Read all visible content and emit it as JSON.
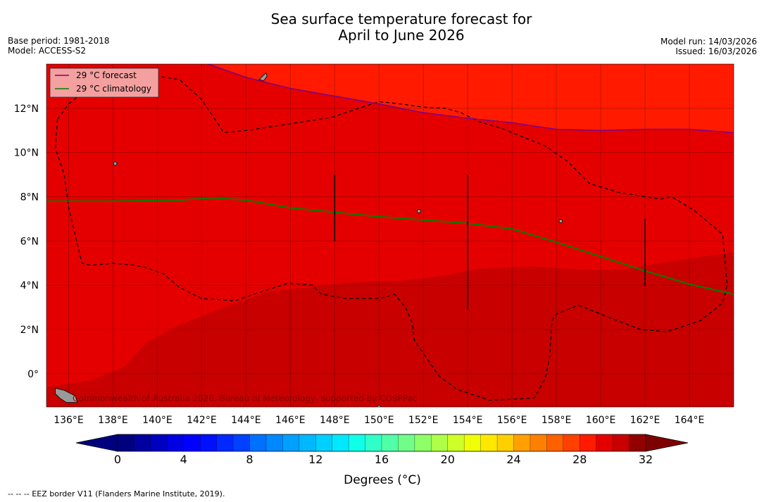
{
  "header": {
    "title_line1": "Sea surface temperature forecast for",
    "title_line2": "April to June 2026",
    "base_period": "Base period: 1981-2018",
    "model": "Model: ACCESS-S2",
    "model_run": "Model run: 14/03/2026",
    "issued": "Issued: 16/03/2026"
  },
  "map": {
    "lon_range": [
      135,
      166
    ],
    "lat_range": [
      -1.5,
      14
    ],
    "lon_ticks": [
      136,
      138,
      140,
      142,
      144,
      146,
      148,
      150,
      152,
      154,
      156,
      158,
      160,
      162,
      164
    ],
    "lon_tick_labels": [
      "136°E",
      "138°E",
      "140°E",
      "142°E",
      "144°E",
      "146°E",
      "148°E",
      "150°E",
      "152°E",
      "154°E",
      "156°E",
      "158°E",
      "160°E",
      "162°E",
      "164°E"
    ],
    "lat_ticks": [
      0,
      2,
      4,
      6,
      8,
      10,
      12
    ],
    "lat_tick_labels": [
      "0°",
      "2°N",
      "4°N",
      "6°N",
      "8°N",
      "10°N",
      "12°N"
    ],
    "ocean_colors": {
      "band_28_29": "#e50000",
      "band_29_30": "#ff1a00",
      "band_27_28": "#c80000",
      "land": "#999999",
      "eez_line": "#000000",
      "forecast_line": "#800080",
      "climatology_line": "#008000",
      "grid": "#000000"
    },
    "warm_region_boundary": [
      [
        135,
        14
      ],
      [
        142.3,
        14
      ],
      [
        144,
        13.4
      ],
      [
        146,
        12.9
      ],
      [
        148,
        12.55
      ],
      [
        150,
        12.2
      ],
      [
        152,
        11.8
      ],
      [
        154,
        11.55
      ],
      [
        156,
        11.35
      ],
      [
        158,
        11.05
      ],
      [
        160,
        11.0
      ],
      [
        162,
        11.05
      ],
      [
        164,
        11.05
      ],
      [
        166,
        10.9
      ],
      [
        166,
        14
      ]
    ],
    "cool_region_boundary": [
      [
        135,
        -1.5
      ],
      [
        135,
        -0.6
      ],
      [
        137,
        -0.3
      ],
      [
        138.5,
        0.3
      ],
      [
        139.5,
        1.4
      ],
      [
        141,
        2.2
      ],
      [
        143,
        3.0
      ],
      [
        145,
        3.7
      ],
      [
        147,
        3.95
      ],
      [
        149,
        4.15
      ],
      [
        151,
        4.2
      ],
      [
        153,
        4.45
      ],
      [
        154.5,
        4.75
      ],
      [
        157,
        4.85
      ],
      [
        159,
        4.7
      ],
      [
        161,
        4.7
      ],
      [
        163,
        5.05
      ],
      [
        165,
        5.35
      ],
      [
        166,
        5.5
      ],
      [
        166,
        -1.5
      ]
    ],
    "forecast_29c_contour": [
      [
        142.3,
        14
      ],
      [
        144,
        13.4
      ],
      [
        146,
        12.9
      ],
      [
        148,
        12.55
      ],
      [
        150,
        12.2
      ],
      [
        152,
        11.8
      ],
      [
        154,
        11.55
      ],
      [
        156,
        11.35
      ],
      [
        158,
        11.05
      ],
      [
        160,
        11.0
      ],
      [
        162,
        11.05
      ],
      [
        164,
        11.05
      ],
      [
        166,
        10.9
      ]
    ],
    "climatology_29c_contour": [
      [
        135,
        7.8
      ],
      [
        138,
        7.8
      ],
      [
        141,
        7.85
      ],
      [
        142.5,
        7.95
      ],
      [
        144,
        7.85
      ],
      [
        146,
        7.5
      ],
      [
        148,
        7.3
      ],
      [
        150,
        7.1
      ],
      [
        152,
        6.95
      ],
      [
        154,
        6.8
      ],
      [
        156,
        6.55
      ],
      [
        158,
        5.95
      ],
      [
        160,
        5.3
      ],
      [
        162,
        4.65
      ],
      [
        164,
        4.05
      ],
      [
        166,
        3.6
      ]
    ],
    "eez_borders": [
      [
        [
          135.5,
          11.5
        ],
        [
          136,
          12.2
        ],
        [
          137,
          13
        ],
        [
          139,
          13.6
        ],
        [
          141,
          13.3
        ],
        [
          142,
          12.4
        ],
        [
          143,
          10.9
        ],
        [
          144,
          11
        ],
        [
          146,
          11.3
        ],
        [
          147.9,
          11.6
        ],
        [
          148.5,
          11.8
        ],
        [
          150,
          12.3
        ],
        [
          151,
          12.2
        ],
        [
          152,
          12.05
        ],
        [
          153,
          12.0
        ],
        [
          153.7,
          11.8
        ],
        [
          154.5,
          11.4
        ],
        [
          155.5,
          11.1
        ],
        [
          156.5,
          10.7
        ],
        [
          157.5,
          10.3
        ],
        [
          158.5,
          9.6
        ],
        [
          159.5,
          8.6
        ],
        [
          160.8,
          8.2
        ],
        [
          162,
          8
        ],
        [
          162.7,
          7.9
        ],
        [
          163.2,
          8
        ],
        [
          164.2,
          7.4
        ],
        [
          165.5,
          6.3
        ],
        [
          165.6,
          5.2
        ],
        [
          165.7,
          4
        ],
        [
          165.5,
          3.2
        ],
        [
          164.5,
          2.4
        ],
        [
          163,
          1.9
        ],
        [
          161.8,
          2.0
        ],
        [
          160.5,
          2.5
        ],
        [
          159.5,
          2.9
        ],
        [
          159,
          3.1
        ],
        [
          158,
          2.7
        ],
        [
          157.8,
          2.4
        ],
        [
          157.7,
          0.8
        ],
        [
          157.5,
          -0.2
        ],
        [
          157,
          -1.1
        ],
        [
          155,
          -1.2
        ],
        [
          153.5,
          -0.7
        ],
        [
          152.7,
          -0.1
        ],
        [
          151.6,
          1.5
        ],
        [
          151.5,
          2.3
        ],
        [
          151.2,
          3.0
        ],
        [
          150.7,
          3.6
        ],
        [
          150,
          3.4
        ],
        [
          148.5,
          3.4
        ],
        [
          147.4,
          3.6
        ],
        [
          147,
          4
        ],
        [
          145.9,
          4.1
        ],
        [
          144.5,
          3.65
        ],
        [
          143.5,
          3.3
        ],
        [
          142,
          3.4
        ],
        [
          141.0,
          3.9
        ],
        [
          140.3,
          4.5
        ],
        [
          139.5,
          4.8
        ],
        [
          139,
          4.9
        ],
        [
          138,
          5.0
        ],
        [
          137,
          4.9
        ],
        [
          136.6,
          5.0
        ],
        [
          136,
          7.5
        ],
        [
          135.8,
          9
        ],
        [
          135.4,
          10.2
        ],
        [
          135.5,
          11.5
        ]
      ]
    ],
    "land_patches": [
      [
        [
          135.4,
          -0.65
        ],
        [
          135.8,
          -0.75
        ],
        [
          136.3,
          -1.0
        ],
        [
          136.4,
          -1.3
        ],
        [
          135.9,
          -1.3
        ],
        [
          135.6,
          -1.1
        ],
        [
          135.4,
          -0.9
        ]
      ],
      [
        [
          144.6,
          13.3
        ],
        [
          144.9,
          13.6
        ],
        [
          144.95,
          13.45
        ],
        [
          144.8,
          13.25
        ]
      ]
    ],
    "small_islands": [
      [
        138.1,
        9.5
      ],
      [
        158.2,
        6.9
      ],
      [
        151.8,
        7.35
      ],
      [
        150.0,
        -1.5
      ]
    ],
    "vertical_bars": [
      {
        "lon": 148,
        "lat_from": 6.0,
        "lat_to": 9.0
      },
      {
        "lon": 154,
        "lat_from": 2.9,
        "lat_to": 9.0
      },
      {
        "lon": 162,
        "lat_from": 4.0,
        "lat_to": 7.0
      }
    ],
    "copyright": "Commonwealth of Australia 2026, Bureau of Meteorology, supported by COSPPac"
  },
  "legend": {
    "forecast_label": "29 °C  forecast",
    "climatology_label": "29 °C  climatology"
  },
  "colorbar": {
    "min": 0,
    "max": 32,
    "step": 1,
    "tick_values": [
      0,
      4,
      8,
      12,
      16,
      20,
      24,
      28,
      32
    ],
    "tick_labels": [
      "0",
      "4",
      "8",
      "12",
      "16",
      "20",
      "24",
      "28",
      "32"
    ],
    "label": "Degrees (°C)",
    "colors": [
      "#00007f",
      "#0000a0",
      "#0000c1",
      "#0000e2",
      "#0000ff",
      "#0010ff",
      "#0028ff",
      "#0040ff",
      "#0058ff",
      "#0070ff",
      "#0088ff",
      "#00a0ff",
      "#00b8ff",
      "#00d0ff",
      "#00e8ff",
      "#10ffe8",
      "#30ffc8",
      "#50ffa8",
      "#6fff88",
      "#8fff68",
      "#afff48",
      "#cfff28",
      "#efff08",
      "#ffe800",
      "#ffd000",
      "#ffb800",
      "#ffa000",
      "#ff8000",
      "#ff6000",
      "#ff4000",
      "#ff1a00",
      "#e50000",
      "#c80000",
      "#920000"
    ],
    "under_color": "#00007f",
    "over_color": "#7f0000"
  },
  "footer": {
    "eez_note": "--  --  -- EEZ border V11 (Flanders Marine Institute, 2019)."
  }
}
